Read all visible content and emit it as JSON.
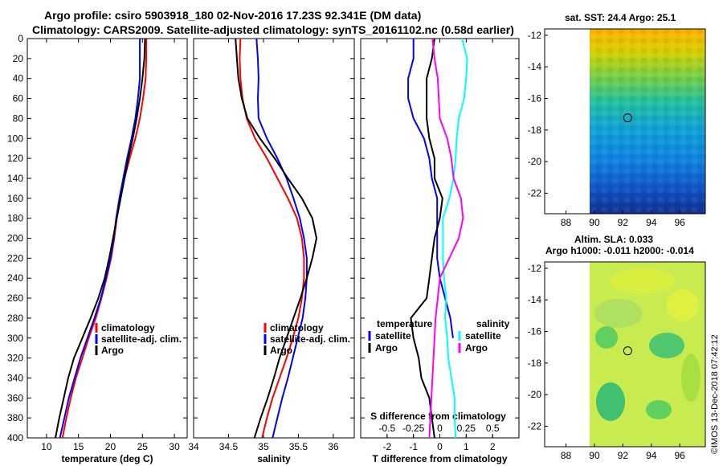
{
  "titles": {
    "line1": "Argo profile: csiro 5903918_180 02-Nov-2016 17.23S 92.341E (DM data)",
    "line2": "Climatology: CARS2009. Satellite-adjusted climatology: synTS_20161102.nc (0.58d earlier)"
  },
  "maps": {
    "sst_title": "sat. SST: 24.4 Argo: 25.1",
    "sla_title1": "Altim. SLA: 0.033",
    "sla_title2": "Argo h1000: -0.011 h2000: -0.014",
    "lat_ticks": [
      "-12",
      "-14",
      "-16",
      "-18",
      "-20",
      "-22"
    ],
    "lon_ticks": [
      "88",
      "90",
      "92",
      "94",
      "96"
    ],
    "argo_position": {
      "lon": 92.341,
      "lat": -17.23
    }
  },
  "credit": "©IMOS 13-Dec-2018 07:42:12",
  "chart_data": [
    {
      "type": "line",
      "xlabel": "temperature (deg C)",
      "ylabel": "",
      "xlim": [
        7,
        32
      ],
      "ylim": [
        400,
        0
      ],
      "xticks": [
        10,
        15,
        20,
        25,
        30
      ],
      "yticks": [
        0,
        20,
        40,
        60,
        80,
        100,
        120,
        140,
        160,
        180,
        200,
        220,
        240,
        260,
        280,
        300,
        320,
        340,
        360,
        380,
        400
      ],
      "legend": [
        "climatology",
        "satellite-adj. clim.",
        "Argo"
      ],
      "series": [
        {
          "name": "climatology",
          "color": "#ff0000",
          "points": [
            [
              25.6,
              0
            ],
            [
              25.6,
              20
            ],
            [
              25.5,
              40
            ],
            [
              25.1,
              60
            ],
            [
              24.6,
              80
            ],
            [
              23.9,
              100
            ],
            [
              23.0,
              120
            ],
            [
              22.2,
              140
            ],
            [
              21.5,
              160
            ],
            [
              21.0,
              180
            ],
            [
              20.6,
              200
            ],
            [
              20.1,
              220
            ],
            [
              19.4,
              240
            ],
            [
              18.6,
              260
            ],
            [
              17.7,
              280
            ],
            [
              16.6,
              300
            ],
            [
              15.6,
              320
            ],
            [
              14.6,
              340
            ],
            [
              13.8,
              360
            ],
            [
              13.1,
              380
            ],
            [
              12.5,
              400
            ]
          ]
        },
        {
          "name": "satellite-adj. clim.",
          "color": "#0000ff",
          "points": [
            [
              24.6,
              0
            ],
            [
              24.6,
              20
            ],
            [
              24.6,
              40
            ],
            [
              24.3,
              60
            ],
            [
              23.9,
              80
            ],
            [
              23.3,
              100
            ],
            [
              22.6,
              120
            ],
            [
              22.0,
              140
            ],
            [
              21.4,
              160
            ],
            [
              20.9,
              180
            ],
            [
              20.5,
              200
            ],
            [
              20.0,
              220
            ],
            [
              19.3,
              240
            ],
            [
              18.5,
              260
            ],
            [
              17.5,
              280
            ],
            [
              16.4,
              300
            ],
            [
              15.3,
              320
            ],
            [
              14.4,
              340
            ],
            [
              13.5,
              360
            ],
            [
              12.8,
              380
            ],
            [
              12.1,
              400
            ]
          ]
        },
        {
          "name": "Argo",
          "color": "#000000",
          "points": [
            [
              25.4,
              0
            ],
            [
              25.3,
              20
            ],
            [
              25.0,
              40
            ],
            [
              24.6,
              60
            ],
            [
              24.1,
              80
            ],
            [
              23.5,
              100
            ],
            [
              22.8,
              120
            ],
            [
              22.2,
              140
            ],
            [
              21.6,
              160
            ],
            [
              21.0,
              180
            ],
            [
              20.4,
              200
            ],
            [
              19.8,
              220
            ],
            [
              19.1,
              240
            ],
            [
              18.1,
              260
            ],
            [
              16.9,
              280
            ],
            [
              15.6,
              300
            ],
            [
              14.3,
              320
            ],
            [
              13.4,
              340
            ],
            [
              12.7,
              360
            ],
            [
              12.0,
              380
            ],
            [
              11.4,
              400
            ]
          ]
        }
      ]
    },
    {
      "type": "line",
      "xlabel": "salinity",
      "ylabel": "",
      "xlim": [
        34.0,
        36.3
      ],
      "ylim": [
        400,
        0
      ],
      "xticks": [
        34,
        34.5,
        35,
        35.5,
        36
      ],
      "xtick_labels": [
        "34",
        "34.5",
        "35",
        "35.5",
        "36"
      ],
      "legend": [
        "climatology",
        "satellite-adj. clim.",
        "Argo"
      ],
      "series": [
        {
          "name": "climatology",
          "color": "#ff0000",
          "points": [
            [
              34.67,
              0
            ],
            [
              34.66,
              20
            ],
            [
              34.67,
              40
            ],
            [
              34.7,
              60
            ],
            [
              34.76,
              80
            ],
            [
              34.88,
              100
            ],
            [
              35.05,
              120
            ],
            [
              35.2,
              140
            ],
            [
              35.35,
              160
            ],
            [
              35.48,
              180
            ],
            [
              35.55,
              200
            ],
            [
              35.58,
              220
            ],
            [
              35.58,
              240
            ],
            [
              35.55,
              260
            ],
            [
              35.5,
              280
            ],
            [
              35.42,
              300
            ],
            [
              35.33,
              320
            ],
            [
              35.23,
              340
            ],
            [
              35.13,
              360
            ],
            [
              35.05,
              380
            ],
            [
              34.98,
              400
            ]
          ]
        },
        {
          "name": "satellite-adj. clim.",
          "color": "#0000ff",
          "points": [
            [
              34.9,
              0
            ],
            [
              34.92,
              20
            ],
            [
              34.93,
              40
            ],
            [
              34.92,
              60
            ],
            [
              34.93,
              80
            ],
            [
              35.05,
              100
            ],
            [
              35.2,
              120
            ],
            [
              35.33,
              140
            ],
            [
              35.43,
              160
            ],
            [
              35.52,
              180
            ],
            [
              35.58,
              200
            ],
            [
              35.62,
              220
            ],
            [
              35.62,
              240
            ],
            [
              35.6,
              260
            ],
            [
              35.56,
              280
            ],
            [
              35.49,
              300
            ],
            [
              35.42,
              320
            ],
            [
              35.35,
              340
            ],
            [
              35.27,
              360
            ],
            [
              35.2,
              380
            ],
            [
              35.13,
              400
            ]
          ]
        },
        {
          "name": "Argo",
          "color": "#000000",
          "points": [
            [
              34.6,
              0
            ],
            [
              34.62,
              20
            ],
            [
              34.64,
              40
            ],
            [
              34.69,
              60
            ],
            [
              34.77,
              80
            ],
            [
              34.95,
              100
            ],
            [
              35.16,
              120
            ],
            [
              35.35,
              140
            ],
            [
              35.55,
              160
            ],
            [
              35.7,
              180
            ],
            [
              35.76,
              200
            ],
            [
              35.7,
              220
            ],
            [
              35.62,
              240
            ],
            [
              35.53,
              260
            ],
            [
              35.43,
              280
            ],
            [
              35.33,
              300
            ],
            [
              35.23,
              320
            ],
            [
              35.15,
              340
            ],
            [
              35.06,
              360
            ],
            [
              34.96,
              380
            ],
            [
              34.87,
              400
            ]
          ]
        }
      ]
    },
    {
      "type": "line",
      "xlabel": "T difference from climatology",
      "top_xlabel": "S difference from climatology",
      "xlim": [
        -3,
        3
      ],
      "ylim": [
        400,
        0
      ],
      "xticks": [
        -2,
        -1,
        0,
        1,
        2
      ],
      "top_xticks": [
        -0.5,
        -0.25,
        0,
        0.25,
        0.5
      ],
      "top_xtick_labels": [
        "-0.5",
        "-0.25",
        "0",
        "0.25",
        "0.5"
      ],
      "legend_titles": [
        "temperature",
        "salinity"
      ],
      "legend": [
        "satellite",
        "Argo",
        "satellite",
        "Argo"
      ],
      "series": [
        {
          "name": "temperature satellite",
          "color": "#0000ff",
          "points": [
            [
              -1.0,
              0
            ],
            [
              -1.0,
              20
            ],
            [
              -1.2,
              40
            ],
            [
              -1.2,
              60
            ],
            [
              -1.0,
              80
            ],
            [
              -0.6,
              100
            ],
            [
              -0.4,
              120
            ],
            [
              -0.3,
              140
            ],
            [
              -0.1,
              160
            ],
            [
              -0.1,
              180
            ],
            [
              -0.1,
              200
            ],
            [
              -0.1,
              220
            ],
            [
              0.0,
              240
            ],
            [
              0.2,
              260
            ],
            [
              0.4,
              280
            ],
            [
              0.5,
              300
            ]
          ]
        },
        {
          "name": "temperature Argo",
          "color": "#000000",
          "points": [
            [
              -0.2,
              0
            ],
            [
              -0.3,
              20
            ],
            [
              -0.5,
              40
            ],
            [
              -0.5,
              60
            ],
            [
              -0.5,
              80
            ],
            [
              -0.4,
              100
            ],
            [
              -0.2,
              120
            ],
            [
              -0.2,
              140
            ],
            [
              0.1,
              160
            ],
            [
              0.0,
              180
            ],
            [
              -0.2,
              200
            ],
            [
              -0.3,
              220
            ],
            [
              -0.4,
              240
            ],
            [
              -0.5,
              260
            ],
            [
              -1.1,
              280
            ],
            [
              -1.0,
              300
            ],
            [
              -0.8,
              320
            ],
            [
              -0.7,
              340
            ],
            [
              -0.4,
              360
            ],
            [
              -0.3,
              380
            ],
            [
              -0.2,
              400
            ]
          ]
        },
        {
          "name": "salinity satellite",
          "color": "#00ffff",
          "points": [
            [
              0.21,
              0
            ],
            [
              0.26,
              20
            ],
            [
              0.25,
              40
            ],
            [
              0.23,
              60
            ],
            [
              0.18,
              80
            ],
            [
              0.16,
              100
            ],
            [
              0.15,
              120
            ],
            [
              0.13,
              140
            ],
            [
              0.09,
              160
            ],
            [
              0.03,
              180
            ],
            [
              0.03,
              200
            ],
            [
              0.03,
              220
            ],
            [
              0.04,
              240
            ],
            [
              0.06,
              260
            ],
            [
              0.05,
              280
            ],
            [
              0.07,
              300
            ],
            [
              0.08,
              320
            ],
            [
              0.11,
              340
            ],
            [
              0.14,
              360
            ],
            [
              0.14,
              380
            ],
            [
              0.15,
              400
            ]
          ]
        },
        {
          "name": "salinity Argo",
          "color": "#ff00ff",
          "points": [
            [
              -0.07,
              0
            ],
            [
              -0.05,
              20
            ],
            [
              -0.02,
              40
            ],
            [
              -0.01,
              60
            ],
            [
              0.0,
              80
            ],
            [
              0.07,
              100
            ],
            [
              0.11,
              120
            ],
            [
              0.13,
              140
            ],
            [
              0.2,
              160
            ],
            [
              0.22,
              180
            ],
            [
              0.18,
              200
            ],
            [
              0.09,
              220
            ],
            [
              0.0,
              240
            ],
            [
              -0.02,
              260
            ],
            [
              -0.04,
              280
            ],
            [
              -0.05,
              300
            ],
            [
              -0.06,
              320
            ],
            [
              -0.07,
              340
            ],
            [
              -0.08,
              360
            ],
            [
              -0.09,
              380
            ],
            [
              -0.1,
              400
            ]
          ]
        }
      ]
    }
  ]
}
